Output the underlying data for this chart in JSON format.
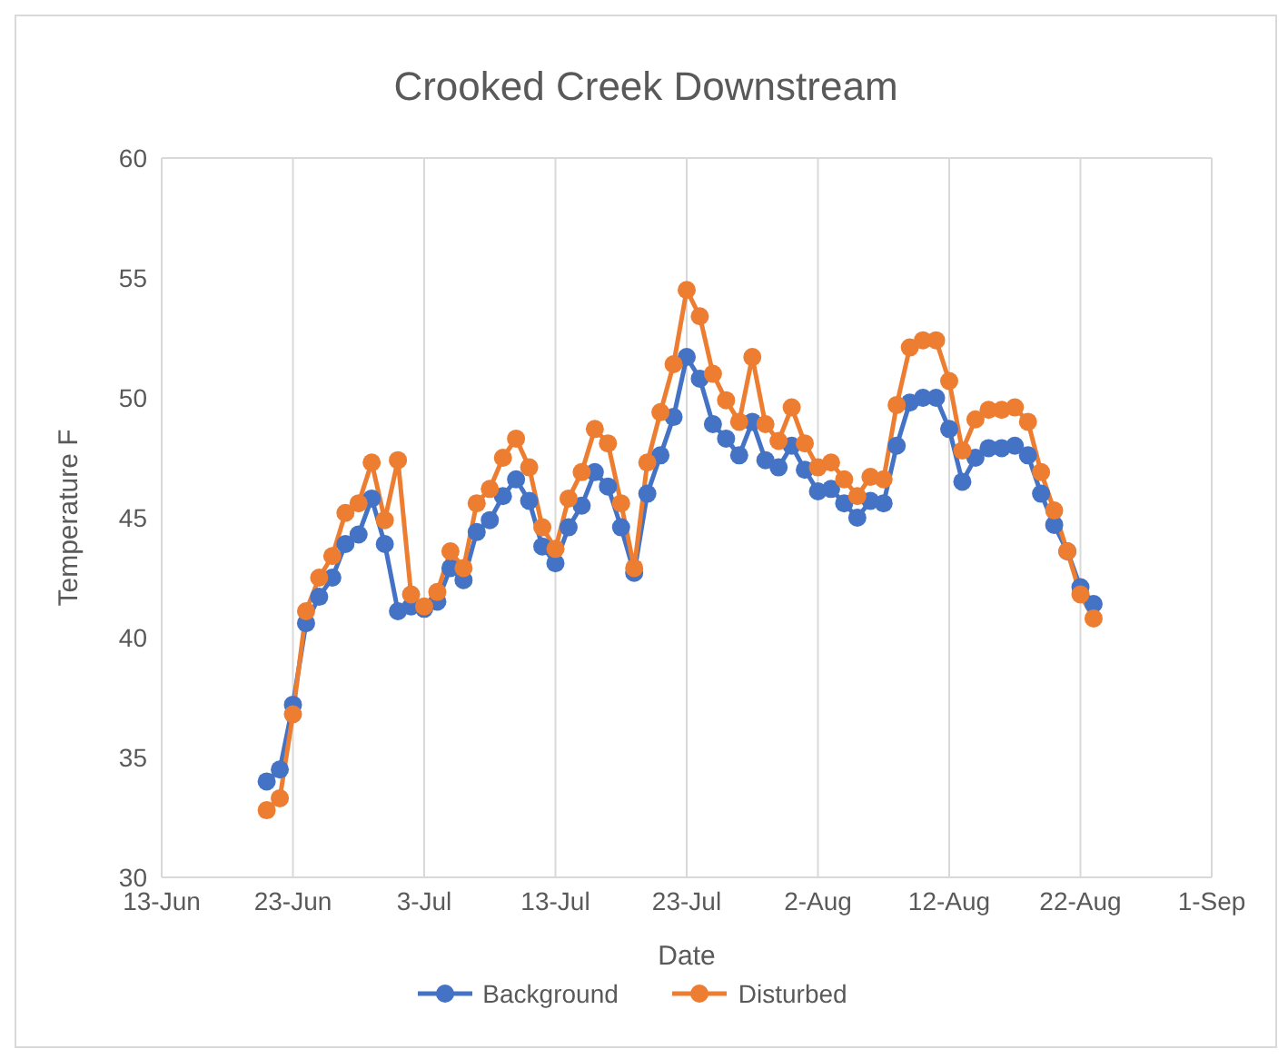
{
  "chart_data": {
    "type": "line",
    "title": "Crooked Creek Downstream",
    "xlabel": "Date",
    "ylabel": "Temperature F",
    "x": [
      "--06-21",
      "--06-22",
      "--06-23",
      "--06-24",
      "--06-25",
      "--06-26",
      "--06-27",
      "--06-28",
      "--06-29",
      "--06-30",
      "--07-01",
      "--07-02",
      "--07-03",
      "--07-04",
      "--07-05",
      "--07-06",
      "--07-07",
      "--07-08",
      "--07-09",
      "--07-10",
      "--07-11",
      "--07-12",
      "--07-13",
      "--07-14",
      "--07-15",
      "--07-16",
      "--07-17",
      "--07-18",
      "--07-19",
      "--07-20",
      "--07-21",
      "--07-22",
      "--07-23",
      "--07-24",
      "--07-25",
      "--07-26",
      "--07-27",
      "--07-28",
      "--07-29",
      "--07-30",
      "--07-31",
      "--08-01",
      "--08-02",
      "--08-03",
      "--08-04",
      "--08-05",
      "--08-06",
      "--08-07",
      "--08-08",
      "--08-09",
      "--08-10",
      "--08-11",
      "--08-12",
      "--08-13",
      "--08-14",
      "--08-15",
      "--08-16",
      "--08-17",
      "--08-18",
      "--08-19",
      "--08-20",
      "--08-21",
      "--08-22",
      "--08-23"
    ],
    "series": [
      {
        "name": "Background",
        "color": "#4472c4",
        "values": [
          34.0,
          34.5,
          37.2,
          40.6,
          41.7,
          42.5,
          43.9,
          44.3,
          45.8,
          43.9,
          41.1,
          41.3,
          41.2,
          41.5,
          42.9,
          42.4,
          44.4,
          44.9,
          45.9,
          46.6,
          45.7,
          43.8,
          43.1,
          44.6,
          45.5,
          46.9,
          46.3,
          44.6,
          42.7,
          46.0,
          47.6,
          49.2,
          51.7,
          50.8,
          48.9,
          48.3,
          47.6,
          49.0,
          47.4,
          47.1,
          48.0,
          47.0,
          46.1,
          46.2,
          45.6,
          45.0,
          45.7,
          45.6,
          48.0,
          49.8,
          50.0,
          50.0,
          48.7,
          46.5,
          47.5,
          47.9,
          47.9,
          48.0,
          47.6,
          46.0,
          44.7,
          43.6,
          42.1,
          41.4
        ]
      },
      {
        "name": "Disturbed",
        "color": "#ed7d31",
        "values": [
          32.8,
          33.3,
          36.8,
          41.1,
          42.5,
          43.4,
          45.2,
          45.6,
          47.3,
          44.9,
          47.4,
          41.8,
          41.3,
          41.9,
          43.6,
          42.9,
          45.6,
          46.2,
          47.5,
          48.3,
          47.1,
          44.6,
          43.7,
          45.8,
          46.9,
          48.7,
          48.1,
          45.6,
          42.9,
          47.3,
          49.4,
          51.4,
          54.5,
          53.4,
          51.0,
          49.9,
          49.0,
          51.7,
          48.9,
          48.2,
          49.6,
          48.1,
          47.1,
          47.3,
          46.6,
          45.9,
          46.7,
          46.6,
          49.7,
          52.1,
          52.4,
          52.4,
          50.7,
          47.8,
          49.1,
          49.5,
          49.5,
          49.6,
          49.0,
          46.9,
          45.3,
          43.6,
          41.8,
          40.8
        ]
      }
    ],
    "xlim": [
      "--06-13",
      "--09-01"
    ],
    "xticks": [
      {
        "value": "--06-13",
        "label": "13-Jun"
      },
      {
        "value": "--06-23",
        "label": "23-Jun"
      },
      {
        "value": "--07-03",
        "label": "3-Jul"
      },
      {
        "value": "--07-13",
        "label": "13-Jul"
      },
      {
        "value": "--07-23",
        "label": "23-Jul"
      },
      {
        "value": "--08-02",
        "label": "2-Aug"
      },
      {
        "value": "--08-12",
        "label": "12-Aug"
      },
      {
        "value": "--08-22",
        "label": "22-Aug"
      },
      {
        "value": "--09-01",
        "label": "1-Sep"
      }
    ],
    "ylim": [
      30,
      60
    ],
    "yticks": [
      30,
      35,
      40,
      45,
      50,
      55,
      60
    ],
    "grid": true,
    "legend": "bottom",
    "marker": "circle",
    "line_style": "solid"
  }
}
